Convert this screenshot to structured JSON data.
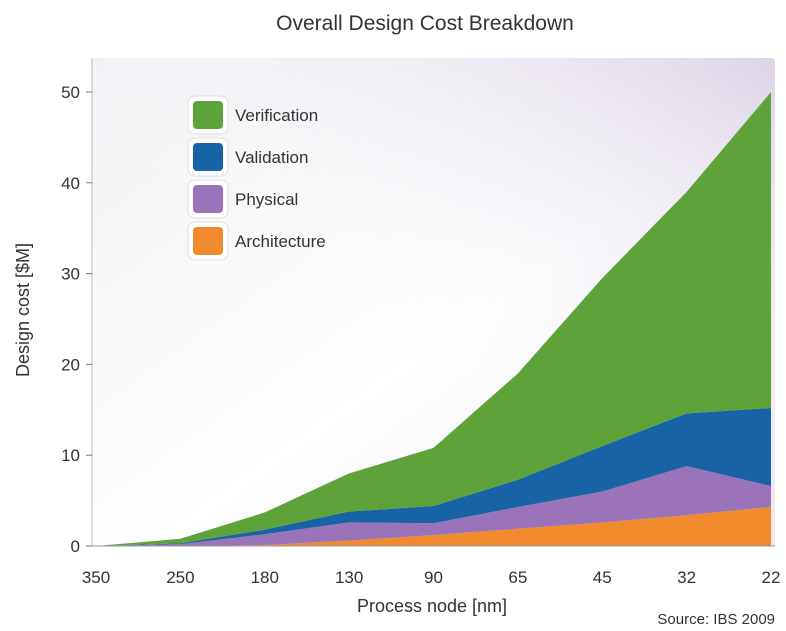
{
  "chart_data": {
    "type": "area",
    "stacked": true,
    "title": "Overall Design Cost Breakdown",
    "xlabel": "Process node [nm]",
    "ylabel": "Design cost [$M]",
    "source": "Source: IBS 2009",
    "categories": [
      "350",
      "250",
      "180",
      "130",
      "90",
      "65",
      "45",
      "32",
      "22"
    ],
    "ylim": [
      0,
      50
    ],
    "yticks": [
      "0",
      "10",
      "20",
      "30",
      "40",
      "50"
    ],
    "grid": false,
    "legend_position": "top-left",
    "series": [
      {
        "name": "Architecture",
        "color": "#f08a2c",
        "values": [
          0,
          0,
          0.1,
          0.6,
          1.2,
          1.9,
          2.6,
          3.4,
          4.3
        ]
      },
      {
        "name": "Physical",
        "color": "#9a73b8",
        "values": [
          0,
          0.2,
          1.2,
          2.0,
          1.3,
          2.4,
          3.4,
          5.4,
          2.3
        ]
      },
      {
        "name": "Validation",
        "color": "#1763a6",
        "values": [
          0,
          0.1,
          0.5,
          1.2,
          1.9,
          3.0,
          5.0,
          5.8,
          8.6
        ]
      },
      {
        "name": "Verification",
        "color": "#5ea33a",
        "values": [
          0,
          0.5,
          1.9,
          4.2,
          6.4,
          11.7,
          18.5,
          24.4,
          34.8
        ]
      }
    ],
    "legend_order": [
      "Verification",
      "Validation",
      "Physical",
      "Architecture"
    ]
  }
}
